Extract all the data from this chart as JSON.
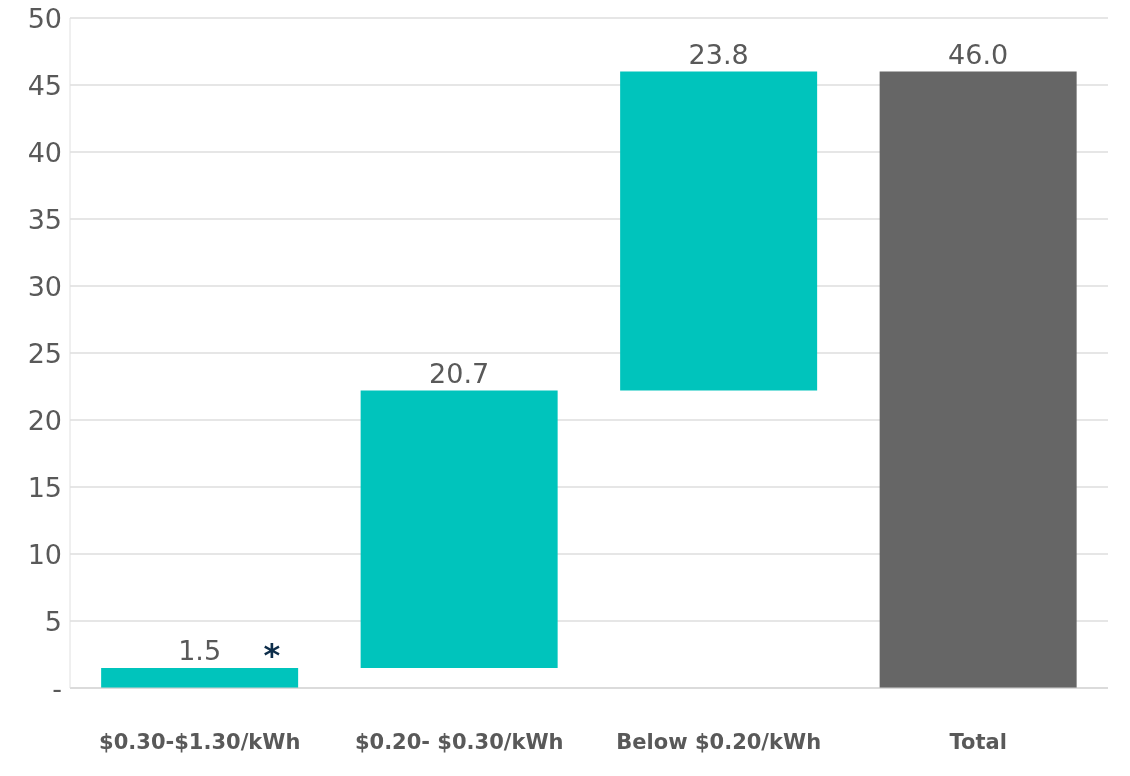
{
  "chart_data": {
    "type": "bar",
    "categories": [
      "$0.30-$1.30/kWh",
      "$0.20-  $0.30/kWh",
      "Below $0.20/kWh",
      "Total"
    ],
    "values": [
      1.5,
      20.7,
      23.8,
      46.0
    ],
    "base": [
      0,
      1.5,
      22.2,
      0
    ],
    "colors": [
      "#00c4bc",
      "#00c4bc",
      "#00c4bc",
      "#666666"
    ],
    "value_labels": [
      "1.5",
      "20.7",
      "23.8",
      "46.0"
    ],
    "annotations": [
      {
        "text": "*",
        "x": "$0.30-$1.30/kWh",
        "y": 1.5
      }
    ],
    "ylim": [
      0,
      50
    ],
    "yticks": [
      {
        "value": 0,
        "label": "-"
      },
      5,
      10,
      15,
      20,
      25,
      30,
      35,
      40,
      45,
      50
    ],
    "grid": "y"
  }
}
